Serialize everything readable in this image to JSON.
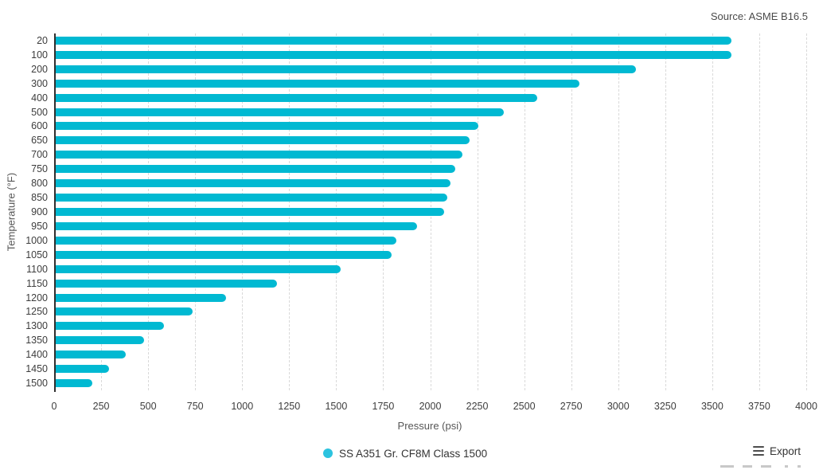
{
  "source_note": "Source: ASME B16.5",
  "colors": {
    "bar": "#00b9d2",
    "legend_dot": "#2cc3df",
    "axis_line": "#2f2f2f",
    "grid_line": "#d9d9d9",
    "tick_text": "#3d3d3d",
    "axis_title_text": "#565656"
  },
  "chart_data": {
    "type": "bar",
    "orientation": "horizontal",
    "title": "",
    "categories": [
      "20",
      "100",
      "200",
      "300",
      "400",
      "500",
      "600",
      "650",
      "700",
      "750",
      "800",
      "850",
      "900",
      "950",
      "1000",
      "1050",
      "1100",
      "1150",
      "1200",
      "1250",
      "1300",
      "1350",
      "1400",
      "1450",
      "1500"
    ],
    "values": [
      3600,
      3600,
      3095,
      2795,
      2570,
      2390,
      2255,
      2210,
      2170,
      2135,
      2110,
      2090,
      2075,
      1930,
      1820,
      1795,
      1525,
      1185,
      915,
      735,
      585,
      480,
      380,
      290,
      205
    ],
    "series": [
      {
        "name": "SS A351 Gr. CF8M Class 1500",
        "values": [
          3600,
          3600,
          3095,
          2795,
          2570,
          2390,
          2255,
          2210,
          2170,
          2135,
          2110,
          2090,
          2075,
          1930,
          1820,
          1795,
          1525,
          1185,
          915,
          735,
          585,
          480,
          380,
          290,
          205
        ]
      }
    ],
    "xlabel": "Pressure (psi)",
    "ylabel": "Temperature (°F)",
    "xlim": [
      0,
      4000
    ],
    "x_ticks": [
      0,
      250,
      500,
      750,
      1000,
      1250,
      1500,
      1750,
      2000,
      2250,
      2500,
      2750,
      3000,
      3250,
      3500,
      3750,
      4000
    ],
    "grid": "vertical-dashed",
    "legend_position": "bottom"
  },
  "legend": {
    "label": "SS A351 Gr. CF8M Class 1500"
  },
  "toolbar": {
    "export_label": "Export",
    "hamburger_icon": "menu-icon"
  }
}
